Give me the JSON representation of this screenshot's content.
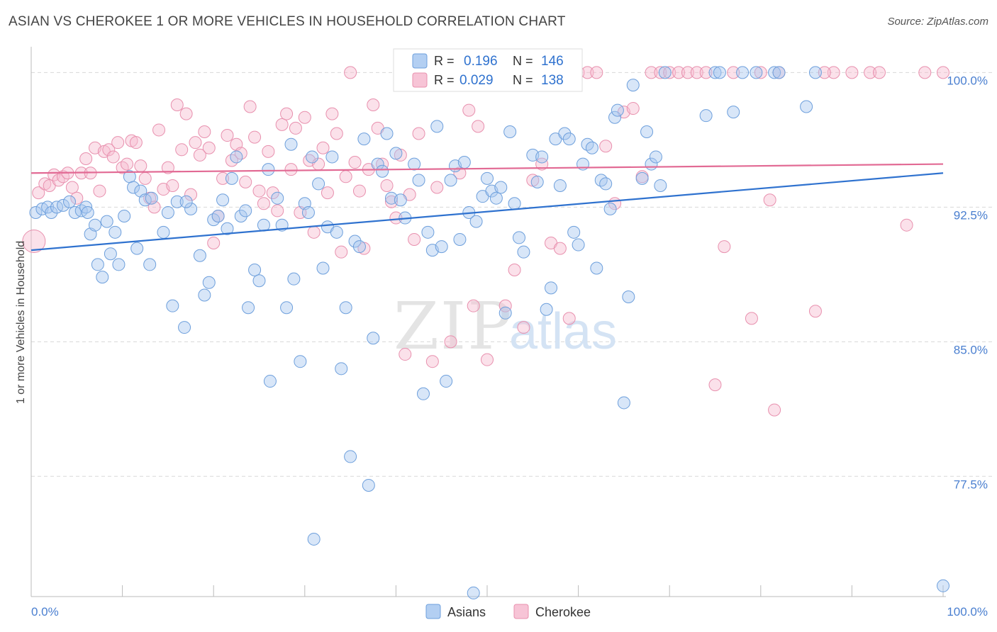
{
  "header": {
    "title": "ASIAN VS CHEROKEE 1 OR MORE VEHICLES IN HOUSEHOLD CORRELATION CHART",
    "source": "Source: ZipAtlas.com"
  },
  "watermark": {
    "zip": "ZIP",
    "atlas": "atlas"
  },
  "colors": {
    "asians_fill": "#a8c8f0",
    "asians_stroke": "#6d9fdc",
    "asians_line": "#2f72cf",
    "cherokee_fill": "#f7bcd0",
    "cherokee_stroke": "#e890ae",
    "cherokee_line": "#e26a94",
    "axis_text": "#4a7fd0",
    "grid": "#d8d8d8"
  },
  "legend_top": {
    "rows": [
      {
        "r_label": "R = ",
        "r_value": "0.196",
        "n_label": "N = ",
        "n_value": "146"
      },
      {
        "r_label": "R = ",
        "r_value": "0.029",
        "n_label": "N = ",
        "n_value": "138"
      }
    ]
  },
  "legend_bottom": {
    "items": [
      "Asians",
      "Cherokee"
    ]
  },
  "chart_data": {
    "type": "scatter",
    "title": "ASIAN VS CHEROKEE 1 OR MORE VEHICLES IN HOUSEHOLD CORRELATION CHART",
    "xlabel": "",
    "ylabel": "1 or more Vehicles in Household",
    "xlim": [
      0,
      100
    ],
    "ylim": [
      70.8,
      101.2
    ],
    "x_tick_labels": [
      "0.0%",
      "100.0%"
    ],
    "y_ticks": [
      77.5,
      85.0,
      92.5,
      100.0
    ],
    "y_tick_labels": [
      "77.5%",
      "85.0%",
      "92.5%",
      "100.0%"
    ],
    "grid": true,
    "legend_position": "top-center",
    "series": [
      {
        "name": "Asians",
        "r": 0.196,
        "n": 146,
        "trend": {
          "x": [
            0,
            100
          ],
          "y": [
            90.1,
            94.4
          ]
        },
        "points": [
          [
            0.5,
            92.2
          ],
          [
            1.2,
            92.4
          ],
          [
            1.8,
            92.5
          ],
          [
            2.2,
            92.2
          ],
          [
            2.8,
            92.5
          ],
          [
            3.5,
            92.6
          ],
          [
            4.2,
            92.8
          ],
          [
            4.8,
            92.2
          ],
          [
            5.5,
            92.3
          ],
          [
            6.0,
            92.5
          ],
          [
            6.2,
            92.2
          ],
          [
            6.5,
            91.0
          ],
          [
            7.0,
            91.5
          ],
          [
            7.3,
            89.3
          ],
          [
            7.8,
            88.6
          ],
          [
            8.3,
            91.7
          ],
          [
            8.7,
            89.9
          ],
          [
            9.2,
            91.1
          ],
          [
            9.6,
            89.3
          ],
          [
            10.2,
            92.0
          ],
          [
            10.8,
            94.2
          ],
          [
            11.2,
            93.6
          ],
          [
            11.6,
            90.2
          ],
          [
            12.0,
            93.4
          ],
          [
            12.5,
            92.9
          ],
          [
            13.0,
            89.3
          ],
          [
            13.2,
            93.0
          ],
          [
            14.5,
            91.1
          ],
          [
            15.0,
            92.2
          ],
          [
            15.5,
            87.0
          ],
          [
            16.0,
            92.8
          ],
          [
            16.8,
            85.8
          ],
          [
            17.5,
            92.4
          ],
          [
            17.0,
            92.8
          ],
          [
            18.5,
            89.8
          ],
          [
            19.0,
            87.6
          ],
          [
            19.5,
            88.3
          ],
          [
            20.0,
            91.8
          ],
          [
            20.5,
            92.0
          ],
          [
            21.0,
            92.9
          ],
          [
            21.5,
            91.3
          ],
          [
            22.0,
            94.1
          ],
          [
            22.5,
            95.3
          ],
          [
            23.0,
            92.0
          ],
          [
            23.5,
            92.3
          ],
          [
            23.8,
            86.9
          ],
          [
            24.5,
            89.0
          ],
          [
            25.0,
            88.4
          ],
          [
            25.5,
            91.5
          ],
          [
            26.0,
            94.6
          ],
          [
            26.2,
            82.8
          ],
          [
            27.0,
            93.0
          ],
          [
            27.5,
            91.5
          ],
          [
            28.0,
            86.9
          ],
          [
            28.5,
            96.0
          ],
          [
            28.8,
            88.5
          ],
          [
            29.5,
            83.9
          ],
          [
            30.0,
            92.7
          ],
          [
            30.4,
            92.2
          ],
          [
            30.8,
            95.3
          ],
          [
            31.0,
            74.0
          ],
          [
            31.5,
            93.8
          ],
          [
            32.0,
            89.1
          ],
          [
            32.5,
            91.4
          ],
          [
            33.0,
            95.3
          ],
          [
            33.5,
            91.1
          ],
          [
            34.0,
            83.5
          ],
          [
            34.5,
            86.9
          ],
          [
            35.0,
            78.6
          ],
          [
            35.5,
            90.6
          ],
          [
            36.0,
            90.3
          ],
          [
            36.5,
            96.3
          ],
          [
            37.0,
            77.0
          ],
          [
            37.5,
            85.2
          ],
          [
            38.0,
            94.9
          ],
          [
            38.5,
            94.5
          ],
          [
            39.0,
            96.6
          ],
          [
            39.5,
            93.0
          ],
          [
            40.0,
            95.5
          ],
          [
            40.5,
            92.9
          ],
          [
            41.0,
            91.9
          ],
          [
            42.0,
            94.9
          ],
          [
            42.5,
            94.0
          ],
          [
            43.0,
            82.1
          ],
          [
            43.5,
            91.1
          ],
          [
            44.0,
            90.1
          ],
          [
            44.5,
            97.0
          ],
          [
            45.0,
            90.3
          ],
          [
            45.5,
            82.8
          ],
          [
            46.0,
            94.0
          ],
          [
            46.5,
            94.8
          ],
          [
            47.0,
            90.7
          ],
          [
            47.5,
            95.0
          ],
          [
            48.0,
            92.2
          ],
          [
            48.5,
            71.0
          ],
          [
            48.8,
            91.7
          ],
          [
            49.5,
            93.1
          ],
          [
            50.0,
            94.1
          ],
          [
            50.5,
            93.4
          ],
          [
            51.0,
            93.0
          ],
          [
            51.5,
            93.6
          ],
          [
            52.0,
            86.6
          ],
          [
            52.5,
            96.7
          ],
          [
            53.0,
            92.7
          ],
          [
            53.5,
            90.8
          ],
          [
            54.0,
            90.0
          ],
          [
            55.0,
            95.4
          ],
          [
            55.5,
            93.9
          ],
          [
            56.0,
            95.3
          ],
          [
            56.5,
            86.8
          ],
          [
            57.0,
            88.0
          ],
          [
            57.5,
            96.3
          ],
          [
            58.0,
            93.7
          ],
          [
            58.5,
            96.6
          ],
          [
            59.0,
            96.3
          ],
          [
            59.5,
            91.1
          ],
          [
            60.0,
            90.4
          ],
          [
            60.5,
            94.9
          ],
          [
            61.0,
            96.0
          ],
          [
            61.5,
            95.8
          ],
          [
            62.0,
            89.1
          ],
          [
            62.5,
            94.0
          ],
          [
            63.0,
            93.8
          ],
          [
            63.5,
            92.4
          ],
          [
            64.0,
            97.5
          ],
          [
            64.3,
            97.9
          ],
          [
            65.0,
            81.6
          ],
          [
            65.5,
            87.5
          ],
          [
            66.0,
            99.3
          ],
          [
            67.0,
            94.1
          ],
          [
            67.5,
            96.7
          ],
          [
            68.0,
            94.9
          ],
          [
            68.5,
            95.3
          ],
          [
            69.0,
            93.7
          ],
          [
            74.0,
            97.6
          ],
          [
            75.0,
            100.0
          ],
          [
            77.0,
            97.8
          ],
          [
            78.0,
            100.0
          ],
          [
            79.5,
            100.0
          ],
          [
            81.5,
            100.0
          ],
          [
            82.0,
            100.0
          ],
          [
            85.0,
            98.1
          ],
          [
            86.0,
            100.0
          ],
          [
            75.5,
            100.0
          ],
          [
            100.0,
            71.4
          ],
          [
            69.5,
            100.0
          ]
        ]
      },
      {
        "name": "Cherokee",
        "r": 0.029,
        "n": 138,
        "trend": {
          "x": [
            0,
            100
          ],
          "y": [
            94.4,
            94.9
          ]
        },
        "points": [
          [
            0.3,
            90.6
          ],
          [
            0.8,
            93.3
          ],
          [
            1.5,
            93.8
          ],
          [
            2.0,
            93.7
          ],
          [
            2.5,
            94.3
          ],
          [
            3.0,
            94.0
          ],
          [
            3.5,
            94.2
          ],
          [
            4.0,
            94.4
          ],
          [
            4.5,
            93.6
          ],
          [
            5.0,
            93.0
          ],
          [
            5.5,
            94.4
          ],
          [
            6.0,
            95.2
          ],
          [
            6.5,
            94.4
          ],
          [
            7.0,
            95.8
          ],
          [
            7.5,
            93.4
          ],
          [
            8.0,
            95.6
          ],
          [
            8.5,
            95.7
          ],
          [
            9.0,
            95.3
          ],
          [
            9.5,
            96.1
          ],
          [
            10.0,
            94.7
          ],
          [
            10.5,
            94.9
          ],
          [
            11.0,
            96.2
          ],
          [
            11.5,
            96.1
          ],
          [
            12.0,
            94.8
          ],
          [
            12.5,
            94.1
          ],
          [
            13.0,
            93.0
          ],
          [
            13.5,
            92.5
          ],
          [
            14.0,
            96.8
          ],
          [
            14.5,
            93.5
          ],
          [
            15.0,
            94.7
          ],
          [
            15.5,
            93.7
          ],
          [
            16.0,
            98.2
          ],
          [
            16.5,
            95.7
          ],
          [
            17.0,
            97.7
          ],
          [
            17.5,
            93.2
          ],
          [
            18.0,
            96.1
          ],
          [
            18.5,
            95.4
          ],
          [
            19.0,
            96.7
          ],
          [
            19.5,
            95.8
          ],
          [
            20.0,
            90.5
          ],
          [
            20.5,
            92.0
          ],
          [
            21.0,
            94.1
          ],
          [
            21.5,
            96.5
          ],
          [
            22.0,
            95.1
          ],
          [
            22.5,
            96.0
          ],
          [
            23.0,
            95.5
          ],
          [
            23.5,
            93.9
          ],
          [
            24.0,
            98.1
          ],
          [
            24.5,
            96.4
          ],
          [
            25.0,
            93.4
          ],
          [
            25.5,
            92.7
          ],
          [
            26.0,
            95.6
          ],
          [
            26.5,
            93.3
          ],
          [
            27.0,
            92.3
          ],
          [
            27.5,
            97.1
          ],
          [
            28.0,
            97.7
          ],
          [
            28.5,
            94.6
          ],
          [
            29.0,
            96.9
          ],
          [
            29.5,
            92.2
          ],
          [
            30.0,
            97.5
          ],
          [
            30.5,
            95.1
          ],
          [
            31.0,
            91.1
          ],
          [
            31.5,
            94.9
          ],
          [
            32.0,
            95.8
          ],
          [
            32.5,
            93.3
          ],
          [
            33.0,
            97.7
          ],
          [
            33.5,
            96.6
          ],
          [
            34.0,
            90.0
          ],
          [
            34.5,
            94.2
          ],
          [
            35.0,
            100.0
          ],
          [
            35.5,
            95.0
          ],
          [
            36.0,
            93.4
          ],
          [
            36.5,
            90.2
          ],
          [
            37.0,
            94.6
          ],
          [
            37.5,
            98.2
          ],
          [
            38.0,
            96.9
          ],
          [
            38.5,
            94.9
          ],
          [
            39.0,
            93.7
          ],
          [
            39.5,
            92.8
          ],
          [
            40.0,
            91.9
          ],
          [
            40.5,
            95.4
          ],
          [
            41.0,
            84.3
          ],
          [
            41.5,
            93.2
          ],
          [
            42.0,
            90.7
          ],
          [
            42.5,
            96.6
          ],
          [
            43.0,
            100.0
          ],
          [
            44.0,
            83.9
          ],
          [
            44.5,
            93.6
          ],
          [
            45.0,
            100.0
          ],
          [
            46.0,
            85.0
          ],
          [
            47.0,
            94.4
          ],
          [
            48.0,
            97.9
          ],
          [
            48.5,
            87.0
          ],
          [
            49.0,
            97.0
          ],
          [
            50.0,
            84.0
          ],
          [
            50.5,
            100.0
          ],
          [
            51.0,
            100.0
          ],
          [
            52.0,
            87.0
          ],
          [
            53.0,
            89.0
          ],
          [
            54.0,
            85.8
          ],
          [
            55.0,
            94.0
          ],
          [
            56.0,
            94.9
          ],
          [
            57.0,
            90.5
          ],
          [
            58.0,
            90.2
          ],
          [
            59.0,
            86.3
          ],
          [
            60.0,
            100.0
          ],
          [
            61.0,
            100.0
          ],
          [
            62.0,
            100.0
          ],
          [
            63.0,
            95.9
          ],
          [
            64.0,
            92.7
          ],
          [
            65.0,
            97.8
          ],
          [
            66.0,
            98.0
          ],
          [
            67.0,
            94.2
          ],
          [
            68.0,
            100.0
          ],
          [
            69.0,
            100.0
          ],
          [
            70.0,
            100.0
          ],
          [
            71.0,
            100.0
          ],
          [
            72.0,
            100.0
          ],
          [
            73.0,
            100.0
          ],
          [
            74.0,
            100.0
          ],
          [
            75.0,
            82.6
          ],
          [
            76.0,
            90.3
          ],
          [
            77.0,
            100.0
          ],
          [
            79.0,
            86.3
          ],
          [
            80.0,
            100.0
          ],
          [
            81.0,
            92.9
          ],
          [
            81.5,
            81.2
          ],
          [
            82.0,
            100.0
          ],
          [
            86.0,
            86.7
          ],
          [
            88.0,
            100.0
          ],
          [
            90.0,
            100.0
          ],
          [
            92.0,
            100.0
          ],
          [
            96.0,
            91.5
          ],
          [
            98.0,
            100.0
          ],
          [
            100.0,
            100.0
          ],
          [
            87.0,
            100.0
          ],
          [
            93.0,
            100.0
          ],
          [
            57.5,
            100.0
          ]
        ]
      }
    ]
  }
}
